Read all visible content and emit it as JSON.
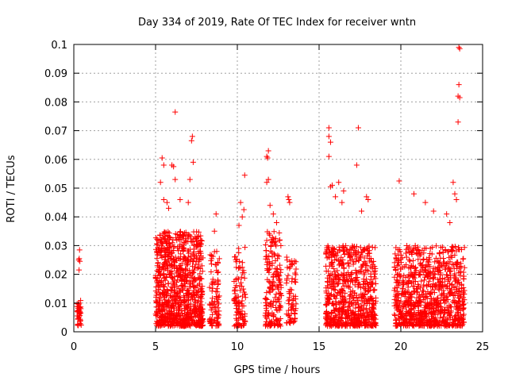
{
  "chart_data": {
    "type": "scatter",
    "title": "Day 334 of 2019, Rate Of TEC Index for receiver wntn",
    "xlabel": "GPS time / hours",
    "ylabel": "ROTI / TECUs",
    "xlim": [
      0,
      25
    ],
    "ylim": [
      0,
      0.1
    ],
    "x_ticks": [
      0,
      5,
      10,
      15,
      20,
      25
    ],
    "x_tick_labels": [
      "0",
      "5",
      "10",
      "15",
      "20",
      "25"
    ],
    "y_ticks": [
      0,
      0.01,
      0.02,
      0.03,
      0.04,
      0.05,
      0.06,
      0.07,
      0.08,
      0.09,
      0.1
    ],
    "y_tick_labels": [
      "0",
      "0.01",
      "0.02",
      "0.03",
      "0.04",
      "0.05",
      "0.06",
      "0.07",
      "0.08",
      "0.09",
      "0.1"
    ],
    "grid": true,
    "marker": "+",
    "color": "#ff0000",
    "clusters": [
      {
        "x_range": [
          0.2,
          0.45
        ],
        "y_range": [
          0.002,
          0.012
        ],
        "count": 40
      },
      {
        "x_range": [
          5.0,
          7.9
        ],
        "y_range": [
          0.002,
          0.035
        ],
        "count": 900
      },
      {
        "x_range": [
          8.3,
          8.9
        ],
        "y_range": [
          0.002,
          0.028
        ],
        "count": 90
      },
      {
        "x_range": [
          9.8,
          10.5
        ],
        "y_range": [
          0.002,
          0.03
        ],
        "count": 100
      },
      {
        "x_range": [
          11.7,
          12.7
        ],
        "y_range": [
          0.002,
          0.035
        ],
        "count": 180
      },
      {
        "x_range": [
          13.0,
          13.6
        ],
        "y_range": [
          0.003,
          0.026
        ],
        "count": 70
      },
      {
        "x_range": [
          15.4,
          18.5
        ],
        "y_range": [
          0.002,
          0.03
        ],
        "count": 700
      },
      {
        "x_range": [
          19.6,
          23.9
        ],
        "y_range": [
          0.002,
          0.03
        ],
        "count": 900
      }
    ],
    "points": [
      {
        "x": 0.35,
        "y": 0.0285
      },
      {
        "x": 0.33,
        "y": 0.0255
      },
      {
        "x": 0.3,
        "y": 0.025
      },
      {
        "x": 0.37,
        "y": 0.0245
      },
      {
        "x": 0.32,
        "y": 0.0215
      },
      {
        "x": 6.2,
        "y": 0.0765
      },
      {
        "x": 7.25,
        "y": 0.068
      },
      {
        "x": 7.2,
        "y": 0.0665
      },
      {
        "x": 5.4,
        "y": 0.0605
      },
      {
        "x": 5.5,
        "y": 0.058
      },
      {
        "x": 6.0,
        "y": 0.058
      },
      {
        "x": 6.1,
        "y": 0.0575
      },
      {
        "x": 7.3,
        "y": 0.059
      },
      {
        "x": 7.1,
        "y": 0.053
      },
      {
        "x": 6.2,
        "y": 0.053
      },
      {
        "x": 5.3,
        "y": 0.052
      },
      {
        "x": 5.5,
        "y": 0.046
      },
      {
        "x": 5.7,
        "y": 0.045
      },
      {
        "x": 5.8,
        "y": 0.043
      },
      {
        "x": 6.5,
        "y": 0.046
      },
      {
        "x": 7.0,
        "y": 0.045
      },
      {
        "x": 8.7,
        "y": 0.041
      },
      {
        "x": 8.6,
        "y": 0.035
      },
      {
        "x": 10.2,
        "y": 0.045
      },
      {
        "x": 10.4,
        "y": 0.0425
      },
      {
        "x": 10.3,
        "y": 0.04
      },
      {
        "x": 10.45,
        "y": 0.0545
      },
      {
        "x": 10.1,
        "y": 0.037
      },
      {
        "x": 11.9,
        "y": 0.063
      },
      {
        "x": 11.8,
        "y": 0.061
      },
      {
        "x": 11.85,
        "y": 0.0605
      },
      {
        "x": 11.9,
        "y": 0.053
      },
      {
        "x": 11.8,
        "y": 0.052
      },
      {
        "x": 12.0,
        "y": 0.044
      },
      {
        "x": 12.2,
        "y": 0.041
      },
      {
        "x": 12.4,
        "y": 0.038
      },
      {
        "x": 13.1,
        "y": 0.047
      },
      {
        "x": 13.15,
        "y": 0.046
      },
      {
        "x": 13.2,
        "y": 0.045
      },
      {
        "x": 15.6,
        "y": 0.071
      },
      {
        "x": 15.6,
        "y": 0.068
      },
      {
        "x": 15.7,
        "y": 0.066
      },
      {
        "x": 15.6,
        "y": 0.061
      },
      {
        "x": 17.4,
        "y": 0.071
      },
      {
        "x": 17.3,
        "y": 0.058
      },
      {
        "x": 16.2,
        "y": 0.052
      },
      {
        "x": 15.8,
        "y": 0.051
      },
      {
        "x": 15.7,
        "y": 0.0505
      },
      {
        "x": 16.5,
        "y": 0.049
      },
      {
        "x": 16.0,
        "y": 0.047
      },
      {
        "x": 16.4,
        "y": 0.045
      },
      {
        "x": 17.9,
        "y": 0.047
      },
      {
        "x": 18.0,
        "y": 0.046
      },
      {
        "x": 17.6,
        "y": 0.042
      },
      {
        "x": 19.9,
        "y": 0.0525
      },
      {
        "x": 20.8,
        "y": 0.048
      },
      {
        "x": 21.5,
        "y": 0.045
      },
      {
        "x": 22.0,
        "y": 0.042
      },
      {
        "x": 23.2,
        "y": 0.052
      },
      {
        "x": 23.3,
        "y": 0.048
      },
      {
        "x": 23.4,
        "y": 0.046
      },
      {
        "x": 22.8,
        "y": 0.041
      },
      {
        "x": 23.0,
        "y": 0.038
      },
      {
        "x": 23.55,
        "y": 0.099
      },
      {
        "x": 23.6,
        "y": 0.0985
      },
      {
        "x": 23.55,
        "y": 0.086
      },
      {
        "x": 23.5,
        "y": 0.082
      },
      {
        "x": 23.6,
        "y": 0.0815
      },
      {
        "x": 23.5,
        "y": 0.073
      }
    ]
  }
}
